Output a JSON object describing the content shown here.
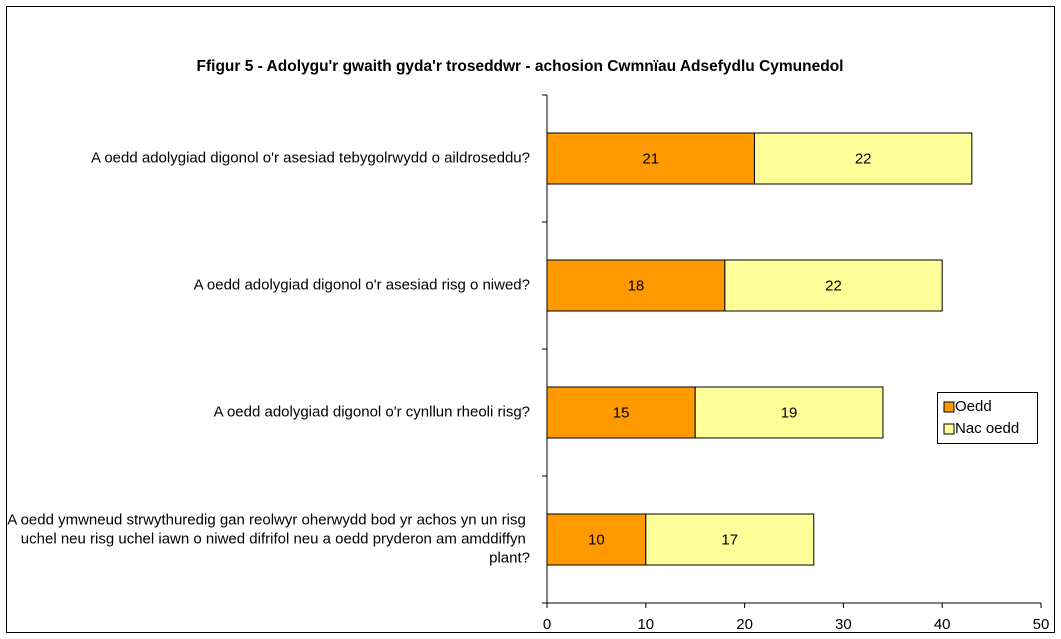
{
  "chart_data": {
    "type": "stacked-barh",
    "title": "Ffigur 5 - Adolygu'r gwaith gyda'r troseddwr - achosion Cwmnïau Adsefydlu Cymunedol",
    "categories": [
      "A oedd adolygiad digonol o'r asesiad tebygolrwydd o aildroseddu?",
      "A oedd adolygiad digonol o'r asesiad risg o niwed?",
      "A oedd adolygiad digonol o'r cynllun rheoli risg?",
      "A oedd ymwneud strwythuredig gan reolwyr oherwydd bod yr achos yn un risg uchel neu risg uchel iawn o niwed difrifol neu a oedd pryderon am amddiffyn plant?"
    ],
    "series": [
      {
        "name": "Oedd",
        "color": "#FF9900",
        "values": [
          21,
          18,
          15,
          10
        ]
      },
      {
        "name": "Nac oedd",
        "color": "#FFFF99",
        "values": [
          22,
          22,
          19,
          17
        ]
      }
    ],
    "xlim": [
      0,
      50
    ],
    "xticks": [
      0,
      10,
      20,
      30,
      40,
      50
    ],
    "legend": "right"
  }
}
